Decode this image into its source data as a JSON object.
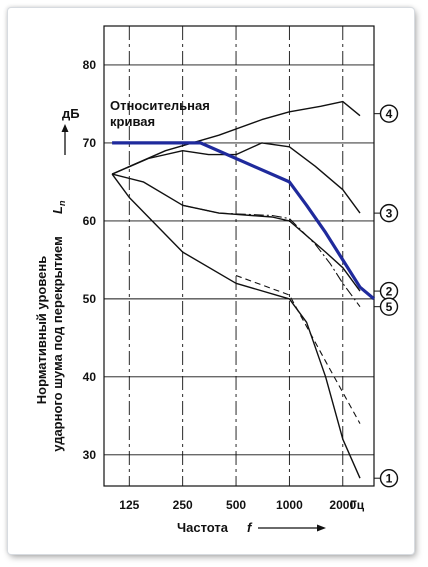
{
  "chart_data": {
    "type": "line",
    "ylabel_line1": "Нормативный уровень",
    "ylabel_line2": "ударного шума под перекрытием",
    "ylabel_symbol": "L",
    "ylabel_subscript": "n",
    "y_unit": "дБ",
    "xlabel": "Частота",
    "xlabel_symbol": "f",
    "x_unit": "Гц",
    "x_scale": "log",
    "xlim": [
      90,
      3000
    ],
    "ylim": [
      26,
      85
    ],
    "grid": true,
    "x_ticks": [
      {
        "value": 125,
        "label": "125"
      },
      {
        "value": 250,
        "label": "250"
      },
      {
        "value": 500,
        "label": "500"
      },
      {
        "value": 1000,
        "label": "1000"
      },
      {
        "value": 2000,
        "label": "2000"
      }
    ],
    "y_ticks": [
      {
        "value": 30,
        "label": "30"
      },
      {
        "value": 40,
        "label": "40"
      },
      {
        "value": 50,
        "label": "50"
      },
      {
        "value": 60,
        "label": "60"
      },
      {
        "value": 70,
        "label": "70"
      },
      {
        "value": 80,
        "label": "80"
      }
    ],
    "reference_label_line1": "Относительная",
    "reference_label_line2": "кривая",
    "series": [
      {
        "name": "1",
        "style": "solid",
        "points": [
          [
            100,
            66
          ],
          [
            125,
            63
          ],
          [
            250,
            56
          ],
          [
            500,
            52
          ],
          [
            1000,
            50
          ],
          [
            1250,
            47
          ],
          [
            1600,
            40
          ],
          [
            2000,
            32
          ],
          [
            2500,
            27
          ]
        ]
      },
      {
        "name": "2",
        "style": "solid",
        "points": [
          [
            100,
            66
          ],
          [
            150,
            65
          ],
          [
            250,
            62
          ],
          [
            400,
            61
          ],
          [
            800,
            60.5
          ],
          [
            1000,
            60
          ],
          [
            1600,
            56
          ],
          [
            2000,
            54
          ],
          [
            2500,
            51
          ]
        ]
      },
      {
        "name": "3",
        "style": "solid",
        "points": [
          [
            100,
            66
          ],
          [
            160,
            68
          ],
          [
            250,
            69
          ],
          [
            350,
            68.5
          ],
          [
            500,
            68.5
          ],
          [
            700,
            70
          ],
          [
            1000,
            69.5
          ],
          [
            1400,
            67
          ],
          [
            2000,
            64
          ],
          [
            2500,
            61
          ]
        ]
      },
      {
        "name": "4",
        "style": "solid",
        "points": [
          [
            100,
            66
          ],
          [
            200,
            69
          ],
          [
            400,
            71
          ],
          [
            700,
            73
          ],
          [
            1000,
            74
          ],
          [
            1500,
            74.7
          ],
          [
            2000,
            75.3
          ],
          [
            2500,
            73.5
          ]
        ]
      },
      {
        "name": "5",
        "style": "dash-dot",
        "points": [
          [
            250,
            62
          ],
          [
            400,
            61
          ],
          [
            800,
            60.7
          ],
          [
            1000,
            60.3
          ],
          [
            1400,
            57
          ],
          [
            1700,
            54.5
          ],
          [
            2000,
            52
          ],
          [
            2500,
            49
          ]
        ]
      },
      {
        "name": "",
        "style": "dashed",
        "points": [
          [
            500,
            53
          ],
          [
            1000,
            50.5
          ],
          [
            1600,
            42
          ],
          [
            2000,
            38
          ],
          [
            2500,
            34
          ]
        ]
      },
      {
        "name": "Относительная кривая",
        "style": "reference",
        "color": "#1f2a9c",
        "points": [
          [
            100,
            70
          ],
          [
            315,
            70
          ],
          [
            630,
            67
          ],
          [
            1000,
            65
          ],
          [
            1250,
            62
          ],
          [
            1600,
            58.5
          ],
          [
            2000,
            55
          ],
          [
            2500,
            51.5
          ],
          [
            3000,
            50
          ]
        ]
      }
    ],
    "curve_markers": [
      "4",
      "3",
      "2",
      "5",
      "1"
    ]
  }
}
